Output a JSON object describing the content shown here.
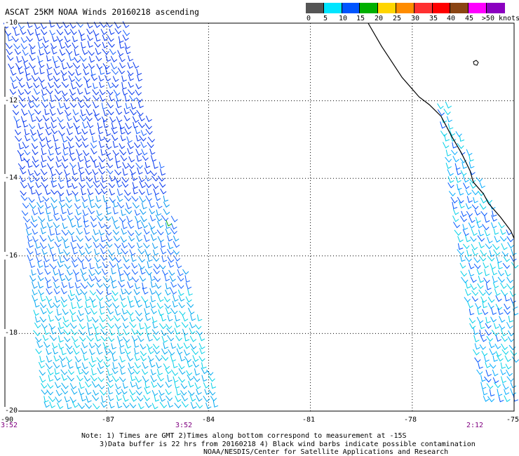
{
  "title": "ASCAT 25KM NOAA Winds 20160218 ascending",
  "legend": {
    "colors": [
      "#555555",
      "#00e5ff",
      "#0055ff",
      "#00b000",
      "#ffd500",
      "#ff8c00",
      "#ff3030",
      "#ff0000",
      "#8b4513",
      "#ff00ff",
      "#8b00c0"
    ],
    "labels": [
      "0",
      "5",
      "10",
      "15",
      "20",
      "25",
      "30",
      "35",
      "40",
      "45",
      ">50 knots"
    ]
  },
  "map": {
    "lat_labels": [
      "-10",
      "-12",
      "-14",
      "-16",
      "-18",
      "-20"
    ],
    "lon_labels": [
      "-90",
      "-87",
      "-84",
      "-81",
      "-78",
      "-75"
    ],
    "lat_range": [
      -20,
      -10
    ],
    "lon_range": [
      -90,
      -75
    ],
    "pass_times": [
      "3:52",
      "3:52",
      "2:12"
    ],
    "colors": {
      "coast": "#000000",
      "grid": "#000000",
      "time_text": "#800080"
    }
  },
  "notes": {
    "line1": "Note: 1) Times are GMT 2)Times along bottom correspond to measurement at -15S",
    "line2": "3)Data buffer is 22 hrs from 20160218 4) Black wind barbs indicate possible contamination",
    "line3": "NOAA/NESDIS/Center for Satellite Applications and Research"
  }
}
